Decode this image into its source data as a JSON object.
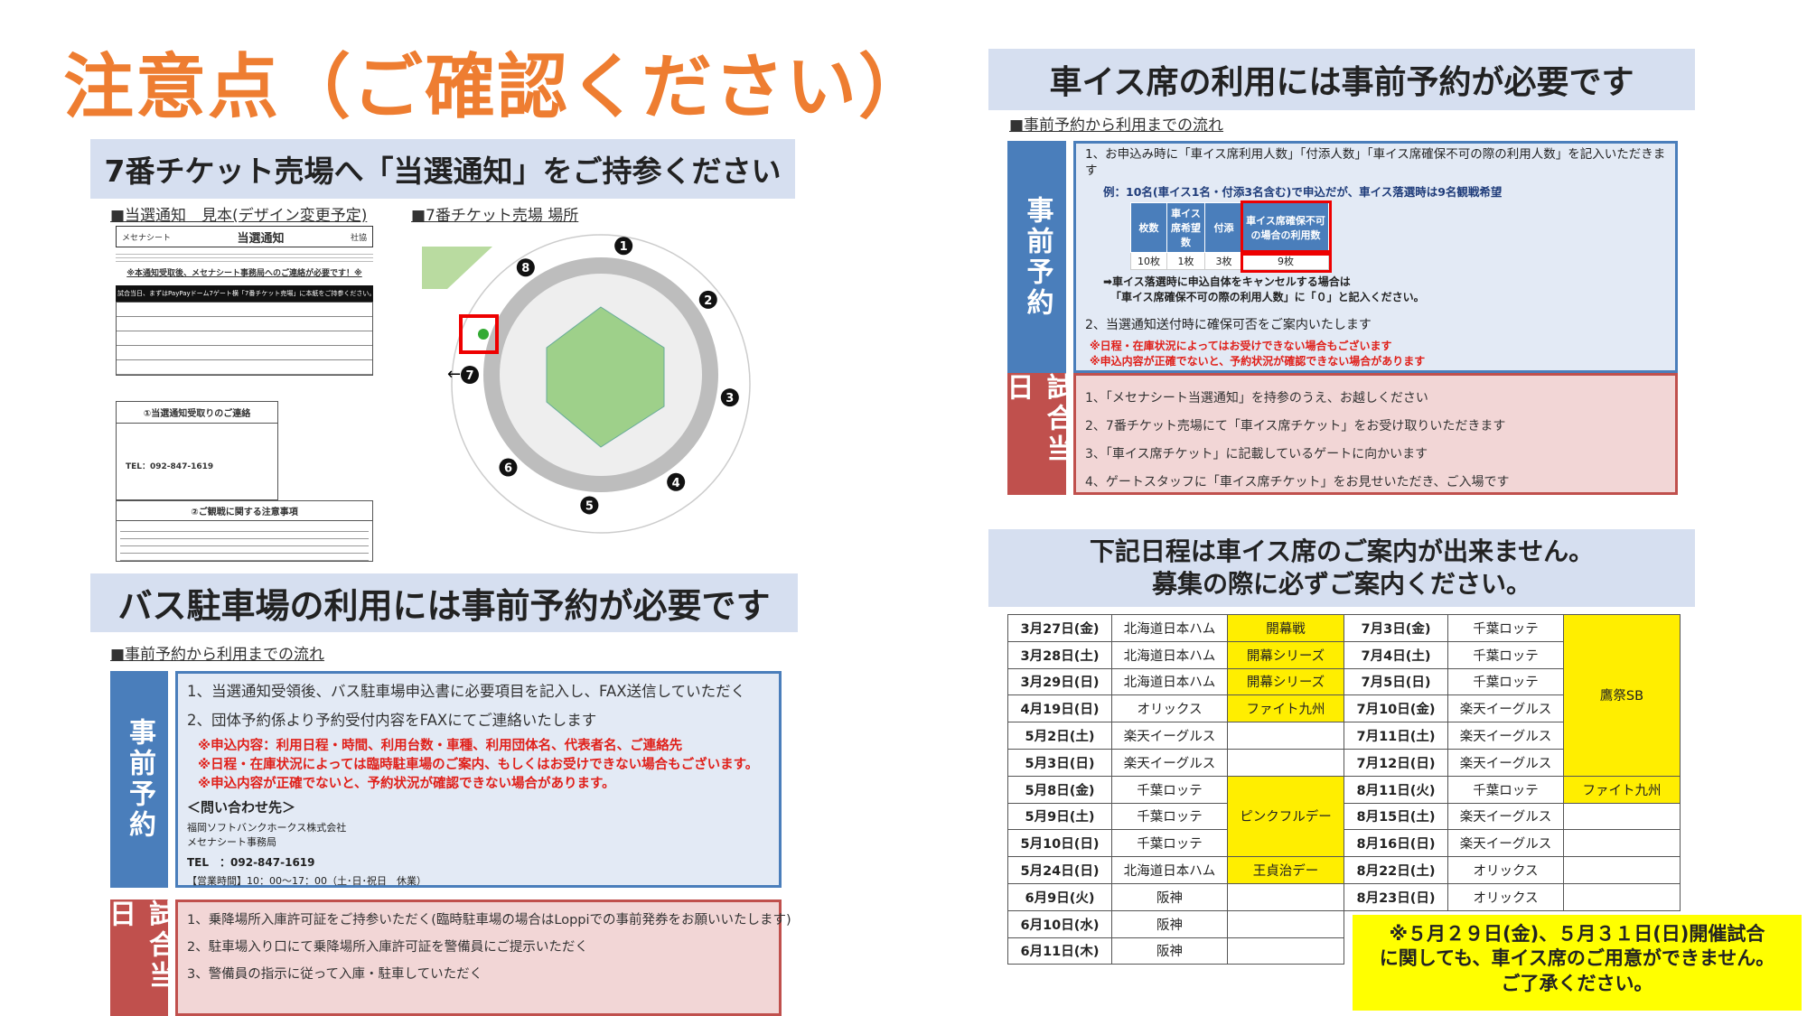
{
  "title": "注意点（ご確認ください）",
  "ticket_header": "7番チケット売場へ「当選通知」をご持参ください",
  "sample": {
    "heading": "■当選通知　見本(デザイン変更予定)",
    "doc_left": "メセナシート",
    "doc_title": "当選通知",
    "doc_right": "社協",
    "notice": "※本通知受取後、メセナシート事務局へのご連絡が必要です！※",
    "bar": "試合当日、まずはPayPayドーム7ゲート横「7番チケット売場」に本紙をご持参ください。",
    "box1_title": "①当選通知受取りのご連絡",
    "box1_tel": "TEL：092-847-1619",
    "box2_title": "②ご観戦に関する注意事項"
  },
  "map": {
    "heading": "■7番チケット売場 場所",
    "gates": [
      "1",
      "2",
      "3",
      "4",
      "5",
      "6",
      "7",
      "8"
    ]
  },
  "bus": {
    "header": "バス駐車場の利用には事前予約が必要です",
    "flow_heading": "■事前予約から利用までの流れ",
    "pre_label": "事前予約",
    "pre_items": [
      "1、当選通知受領後、バス駐車場申込書に必要項目を記入し、FAX送信していただく",
      "2、団体予約係より予約受付内容をFAXにてご連絡いたします"
    ],
    "pre_warnings": [
      "※申込内容：利用日程・時間、利用台数・車種、利用団体名、代表者名、ご連絡先",
      "※日程・在庫状況によっては臨時駐車場のご案内、もしくはお受けできない場合もございます。",
      "※申込内容が正確でないと、予約状況が確認できない場合があります。"
    ],
    "contact_heading": "＜問い合わせ先＞",
    "contact_company": "福岡ソフトバンクホークス株式会社",
    "contact_office": "メセナシート事務局",
    "contact_tel": "TEL　：092-847-1619",
    "contact_hours": "【営業時間】10：00～17：00（土･日･祝日　休業）",
    "day_label": "試合当日",
    "day_items": [
      "1、乗降場所入庫許可証をご持参いただく(臨時駐車場の場合はLoppiでの事前発券をお願いいたします)",
      "2、駐車場入り口にて乗降場所入庫許可証を警備員にご提示いただく",
      "3、警備員の指示に従って入庫・駐車していただく"
    ]
  },
  "wheelchair": {
    "header": "車イス席の利用には事前予約が必要です",
    "flow_heading": "■事前予約から利用までの流れ",
    "pre_label": "事前予約",
    "item1": "1、お申込み時に「車イス席利用人数」「付添人数」「車イス席確保不可の際の利用人数」を記入いただきます",
    "example": "例：10名(車イス1名・付添3名含む)で申込だが、車イス落選時は9名観戦希望",
    "table_headers": [
      "枚数",
      "車イス席希望数",
      "付添",
      "車イス席確保不可の場合の利用数"
    ],
    "table_values": [
      "10枚",
      "1枚",
      "3枚",
      "9枚"
    ],
    "cancel_note1": "➡車イス落選時に申込自体をキャンセルする場合は",
    "cancel_note2": "「車イス席確保不可の際の利用人数」に「０」と記入ください。",
    "item2": "2、当選通知送付時に確保可否をご案内いたします",
    "warnings": [
      "※日程・在庫状況によってはお受けできない場合もございます",
      "※申込内容が正確でないと、予約状況が確認できない場合があります"
    ],
    "day_label": "試合当日",
    "day_items": [
      "1、「メセナシート当選通知」を持参のうえ、お越しください",
      "2、7番チケット売場にて「車イス席チケット」をお受け取りいただきます",
      "3、「車イス席チケット」に記載しているゲートに向かいます",
      "4、ゲートスタッフに「車イス席チケット」をお見せいただき、ご入場です"
    ]
  },
  "schedule": {
    "header_line1": "下記日程は車イス席のご案内が出来ません。",
    "header_line2": "募集の際に必ずご案内ください。",
    "left": [
      [
        "3月27日(金)",
        "北海道日本ハム"
      ],
      [
        "3月28日(土)",
        "北海道日本ハム"
      ],
      [
        "3月29日(日)",
        "北海道日本ハム"
      ],
      [
        "4月19日(日)",
        "オリックス"
      ],
      [
        "5月2日(土)",
        "楽天イーグルス"
      ],
      [
        "5月3日(日)",
        "楽天イーグルス"
      ],
      [
        "5月8日(金)",
        "千葉ロッテ"
      ],
      [
        "5月9日(土)",
        "千葉ロッテ"
      ],
      [
        "5月10日(日)",
        "千葉ロッテ"
      ],
      [
        "5月24日(日)",
        "北海道日本ハム"
      ],
      [
        "6月9日(火)",
        "阪神"
      ],
      [
        "6月10日(水)",
        "阪神"
      ],
      [
        "6月11日(木)",
        "阪神"
      ]
    ],
    "left_events": [
      "開幕戦",
      "開幕シリーズ",
      "開幕シリーズ",
      "ファイト九州",
      "ピンクフルデー",
      "王貞治デー"
    ],
    "right": [
      [
        "7月3日(金)",
        "千葉ロッテ"
      ],
      [
        "7月4日(土)",
        "千葉ロッテ"
      ],
      [
        "7月5日(日)",
        "千葉ロッテ"
      ],
      [
        "7月10日(金)",
        "楽天イーグルス"
      ],
      [
        "7月11日(土)",
        "楽天イーグルス"
      ],
      [
        "7月12日(日)",
        "楽天イーグルス"
      ],
      [
        "8月11日(火)",
        "千葉ロッテ"
      ],
      [
        "8月15日(土)",
        "楽天イーグルス"
      ],
      [
        "8月16日(日)",
        "楽天イーグルス"
      ],
      [
        "8月22日(土)",
        "オリックス"
      ],
      [
        "8月23日(日)",
        "オリックス"
      ]
    ],
    "right_events": [
      "鷹祭SB",
      "ファイト九州"
    ],
    "highlight_color": "#ffee00",
    "note_line1": "※５月２９日(金)、５月３１日(日)開催試合",
    "note_line2": "に関しても、車イス席のご用意ができません。",
    "note_line3": "ご了承ください。"
  }
}
